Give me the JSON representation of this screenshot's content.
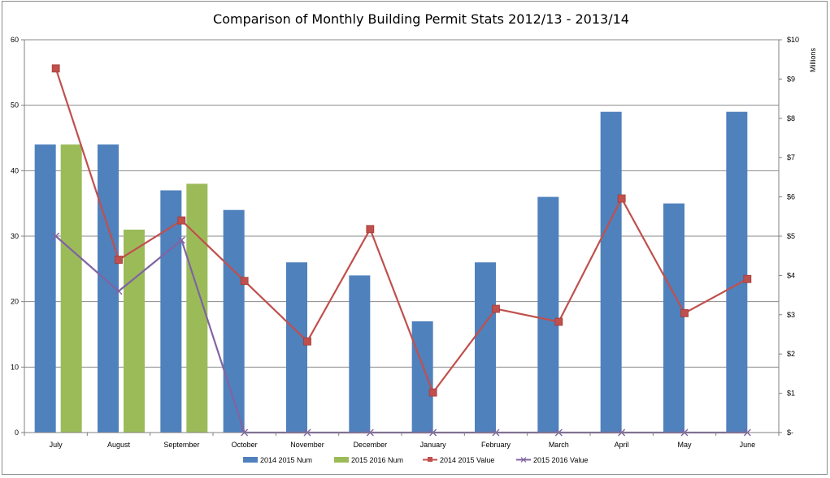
{
  "chart_data": {
    "type": "bar",
    "title": "Comparison of Monthly Building Permit Stats 2012/13 - 2013/14",
    "categories": [
      "July",
      "August",
      "September",
      "October",
      "November",
      "December",
      "January",
      "February",
      "March",
      "April",
      "May",
      "June"
    ],
    "left_axis": {
      "ylim": [
        0,
        60
      ],
      "ticks": [
        "0",
        "10",
        "20",
        "30",
        "40",
        "50",
        "60"
      ]
    },
    "right_axis": {
      "label": "Millions",
      "ylim": [
        0,
        10
      ],
      "ticks": [
        "$-",
        "$1",
        "$2",
        "$3",
        "$4",
        "$5",
        "$6",
        "$7",
        "$8",
        "$9",
        "$10"
      ]
    },
    "grid": true,
    "legend_position": "bottom",
    "series": [
      {
        "name": "2014 2015 Num",
        "kind": "bar",
        "axis": "left",
        "color": "#4f81bd",
        "values": [
          44,
          44,
          37,
          34,
          26,
          24,
          17,
          26,
          36,
          49,
          35,
          49
        ]
      },
      {
        "name": "2015 2016 Num",
        "kind": "bar",
        "axis": "left",
        "color": "#9bbb59",
        "values": [
          44,
          31,
          38,
          null,
          null,
          null,
          null,
          null,
          null,
          null,
          null,
          null
        ]
      },
      {
        "name": "2014 2015 Value",
        "kind": "line",
        "axis": "right",
        "marker": "square",
        "color": "#c0504d",
        "values": [
          9.27,
          4.4,
          5.4,
          3.86,
          2.32,
          5.18,
          1.02,
          3.15,
          2.82,
          5.96,
          3.04,
          3.91
        ]
      },
      {
        "name": "2015 2016 Value",
        "kind": "line",
        "axis": "right",
        "marker": "x",
        "color": "#8064a2",
        "values": [
          5.0,
          3.6,
          4.9,
          0,
          0,
          0,
          0,
          0,
          0,
          0,
          0,
          0
        ]
      }
    ]
  }
}
